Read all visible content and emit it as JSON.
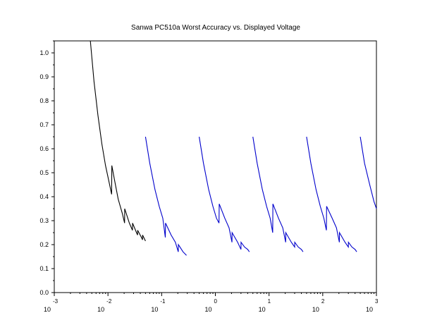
{
  "chart_data": {
    "type": "line",
    "title": "Sanwa PC510a Worst Accuracy vs. Displayed Voltage",
    "xlabel": "",
    "ylabel": "",
    "x_scale": "log",
    "xlim": [
      0.001,
      1000
    ],
    "ylim": [
      0.0,
      1.05
    ],
    "grid": false,
    "x_ticks": [
      {
        "value": 0.001,
        "base": "10",
        "exponent": "-3"
      },
      {
        "value": 0.01,
        "base": "10",
        "exponent": "-2"
      },
      {
        "value": 0.1,
        "base": "10",
        "exponent": "-1"
      },
      {
        "value": 1,
        "base": "10",
        "exponent": "0"
      },
      {
        "value": 10,
        "base": "10",
        "exponent": "1"
      },
      {
        "value": 100,
        "base": "10",
        "exponent": "2"
      },
      {
        "value": 1000,
        "base": "10",
        "exponent": "3"
      }
    ],
    "y_ticks": [
      {
        "value": 0.0,
        "label": "0.0"
      },
      {
        "value": 0.1,
        "label": "0.1"
      },
      {
        "value": 0.2,
        "label": "0.2"
      },
      {
        "value": 0.3,
        "label": "0.3"
      },
      {
        "value": 0.4,
        "label": "0.4"
      },
      {
        "value": 0.5,
        "label": "0.5"
      },
      {
        "value": 0.6,
        "label": "0.6"
      },
      {
        "value": 0.7,
        "label": "0.7"
      },
      {
        "value": 0.8,
        "label": "0.8"
      },
      {
        "value": 0.9,
        "label": "0.9"
      },
      {
        "value": 1.0,
        "label": "1.0"
      }
    ],
    "series": [
      {
        "color": "#000000",
        "points": [
          [
            0.0047,
            1.05
          ],
          [
            0.0055,
            0.88
          ],
          [
            0.0065,
            0.74
          ],
          [
            0.0077,
            0.62
          ],
          [
            0.009,
            0.53
          ],
          [
            0.0105,
            0.46
          ],
          [
            0.0117,
            0.41
          ],
          [
            0.0118,
            0.53
          ],
          [
            0.0135,
            0.46
          ],
          [
            0.0155,
            0.39
          ],
          [
            0.0185,
            0.33
          ],
          [
            0.0204,
            0.29
          ],
          [
            0.0205,
            0.35
          ],
          [
            0.025,
            0.29
          ],
          [
            0.0286,
            0.26
          ],
          [
            0.0287,
            0.29
          ],
          [
            0.034,
            0.25
          ],
          [
            0.0356,
            0.24
          ],
          [
            0.0357,
            0.26
          ],
          [
            0.042,
            0.23
          ],
          [
            0.044,
            0.22
          ],
          [
            0.0441,
            0.24
          ],
          [
            0.05,
            0.215
          ]
        ]
      },
      {
        "color": "#0000cc",
        "points": [
          [
            0.05,
            0.65
          ],
          [
            0.06,
            0.54
          ],
          [
            0.075,
            0.43
          ],
          [
            0.09,
            0.36
          ],
          [
            0.105,
            0.31
          ],
          [
            0.117,
            0.23
          ],
          [
            0.118,
            0.29
          ],
          [
            0.15,
            0.24
          ],
          [
            0.18,
            0.21
          ],
          [
            0.204,
            0.17
          ],
          [
            0.205,
            0.2
          ],
          [
            0.25,
            0.17
          ],
          [
            0.29,
            0.155
          ]
        ]
      },
      {
        "color": "#0000cc",
        "points": [
          [
            0.5,
            0.65
          ],
          [
            0.6,
            0.54
          ],
          [
            0.75,
            0.43
          ],
          [
            0.9,
            0.36
          ],
          [
            1.05,
            0.31
          ],
          [
            1.17,
            0.29
          ],
          [
            1.18,
            0.37
          ],
          [
            1.5,
            0.31
          ],
          [
            1.8,
            0.27
          ],
          [
            2.04,
            0.21
          ],
          [
            2.05,
            0.25
          ],
          [
            2.6,
            0.21
          ],
          [
            3.0,
            0.18
          ],
          [
            3.01,
            0.21
          ],
          [
            3.5,
            0.19
          ],
          [
            4.0,
            0.18
          ],
          [
            4.3,
            0.17
          ]
        ]
      },
      {
        "color": "#0000cc",
        "points": [
          [
            5.0,
            0.65
          ],
          [
            6.0,
            0.54
          ],
          [
            7.5,
            0.43
          ],
          [
            9.0,
            0.36
          ],
          [
            10.5,
            0.31
          ],
          [
            11.7,
            0.25
          ],
          [
            11.8,
            0.37
          ],
          [
            15.0,
            0.31
          ],
          [
            18.0,
            0.27
          ],
          [
            20.4,
            0.21
          ],
          [
            20.5,
            0.25
          ],
          [
            26.0,
            0.21
          ],
          [
            30.0,
            0.19
          ],
          [
            30.1,
            0.21
          ],
          [
            35.0,
            0.19
          ],
          [
            40.0,
            0.18
          ],
          [
            43.0,
            0.17
          ]
        ]
      },
      {
        "color": "#0000cc",
        "points": [
          [
            50,
            0.65
          ],
          [
            60,
            0.54
          ],
          [
            75,
            0.43
          ],
          [
            90,
            0.36
          ],
          [
            105,
            0.31
          ],
          [
            117,
            0.26
          ],
          [
            118,
            0.36
          ],
          [
            150,
            0.31
          ],
          [
            180,
            0.27
          ],
          [
            204,
            0.21
          ],
          [
            205,
            0.25
          ],
          [
            260,
            0.21
          ],
          [
            300,
            0.19
          ],
          [
            301,
            0.21
          ],
          [
            350,
            0.19
          ],
          [
            400,
            0.18
          ],
          [
            430,
            0.17
          ]
        ]
      },
      {
        "color": "#0000cc",
        "points": [
          [
            500,
            0.65
          ],
          [
            600,
            0.54
          ],
          [
            750,
            0.45
          ],
          [
            900,
            0.38
          ],
          [
            1000,
            0.35
          ]
        ]
      }
    ]
  }
}
